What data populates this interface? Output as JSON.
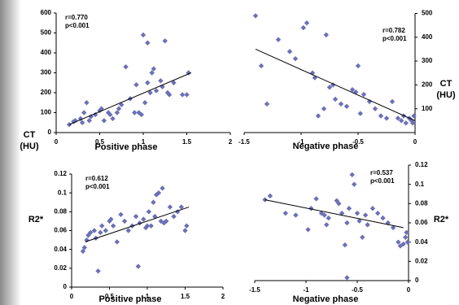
{
  "chart_data": [
    {
      "type": "scatter",
      "annotations": [
        "r=0.770",
        "p<0.001"
      ],
      "xlabel": "Positive phase",
      "ylabel_lines": [
        "CT",
        "(HU)"
      ],
      "y_axis_side": "left",
      "color": "#6b70b6",
      "xlim": [
        0,
        2
      ],
      "xticks": [
        0,
        0.5,
        1,
        1.5,
        2
      ],
      "ylim": [
        0,
        600
      ],
      "yticks": [
        0,
        100,
        200,
        300,
        400,
        500,
        600
      ],
      "x": [
        0.15,
        0.2,
        0.22,
        0.28,
        0.3,
        0.32,
        0.35,
        0.38,
        0.4,
        0.45,
        0.5,
        0.52,
        0.55,
        0.6,
        0.62,
        0.65,
        0.7,
        0.72,
        0.75,
        0.8,
        0.85,
        0.9,
        0.92,
        0.95,
        0.98,
        1.0,
        1.02,
        1.05,
        1.05,
        1.08,
        1.1,
        1.12,
        1.15,
        1.2,
        1.22,
        1.25,
        1.28,
        1.3,
        1.35,
        1.45,
        1.5,
        1.52
      ],
      "values": [
        40,
        55,
        60,
        70,
        50,
        100,
        150,
        60,
        80,
        90,
        110,
        120,
        60,
        100,
        90,
        70,
        100,
        120,
        140,
        330,
        170,
        100,
        240,
        100,
        90,
        490,
        150,
        250,
        450,
        200,
        300,
        320,
        210,
        260,
        230,
        460,
        200,
        190,
        250,
        190,
        190,
        300
      ],
      "trendline": {
        "x": [
          0.15,
          1.55
        ],
        "y": [
          40,
          300
        ]
      }
    },
    {
      "type": "scatter",
      "annotations": [
        "r=0.782",
        "p<0.001"
      ],
      "xlabel": "Negative phase",
      "ylabel_lines": [
        "CT",
        "(HU)"
      ],
      "y_axis_side": "right",
      "color": "#6b70b6",
      "xlim": [
        -1.5,
        0
      ],
      "xticks": [
        -1.5,
        -1,
        -0.5,
        0
      ],
      "ylim": [
        0,
        500
      ],
      "yticks": [
        100,
        200,
        300,
        400,
        500
      ],
      "x": [
        -1.4,
        -1.35,
        -1.3,
        -1.2,
        -1.1,
        -1.05,
        -0.98,
        -0.95,
        -0.9,
        -0.88,
        -0.85,
        -0.8,
        -0.78,
        -0.75,
        -0.72,
        -0.7,
        -0.65,
        -0.6,
        -0.55,
        -0.52,
        -0.5,
        -0.48,
        -0.45,
        -0.4,
        -0.35,
        -0.3,
        -0.25,
        -0.2,
        -0.15,
        -0.12,
        -0.1,
        -0.08,
        -0.05,
        -0.03,
        -0.01,
        -0.02
      ],
      "values": [
        490,
        280,
        120,
        390,
        340,
        310,
        440,
        460,
        250,
        230,
        70,
        100,
        410,
        190,
        200,
        140,
        120,
        110,
        180,
        170,
        280,
        80,
        160,
        130,
        100,
        70,
        60,
        130,
        60,
        50,
        70,
        40,
        60,
        50,
        70,
        40
      ],
      "trendline": {
        "x": [
          -1.4,
          0
        ],
        "y": [
          350,
          50
        ]
      }
    },
    {
      "type": "scatter",
      "annotations": [
        "r=0.612",
        "p<0.001"
      ],
      "xlabel": "Positive phase",
      "ylabel": "R2*",
      "y_axis_side": "left",
      "color": "#6b70b6",
      "xlim": [
        0,
        2
      ],
      "xticks": [
        0,
        0.5,
        1,
        1.5,
        2
      ],
      "ylim": [
        0,
        0.12
      ],
      "yticks": [
        0,
        0.02,
        0.04,
        0.06,
        0.08,
        0.1,
        0.12
      ],
      "x": [
        0.15,
        0.17,
        0.2,
        0.22,
        0.25,
        0.3,
        0.32,
        0.35,
        0.38,
        0.4,
        0.45,
        0.5,
        0.52,
        0.55,
        0.6,
        0.65,
        0.7,
        0.75,
        0.8,
        0.85,
        0.88,
        0.9,
        0.95,
        0.98,
        1.0,
        1.02,
        1.05,
        1.08,
        1.1,
        1.12,
        1.15,
        1.18,
        1.2,
        1.22,
        1.25,
        1.3,
        1.35,
        1.4,
        1.45,
        1.5,
        1.52
      ],
      "values": [
        0.038,
        0.042,
        0.05,
        0.055,
        0.058,
        0.06,
        0.052,
        0.017,
        0.058,
        0.065,
        0.06,
        0.07,
        0.072,
        0.065,
        0.048,
        0.077,
        0.07,
        0.06,
        0.065,
        0.075,
        0.022,
        0.068,
        0.072,
        0.063,
        0.065,
        0.08,
        0.065,
        0.09,
        0.075,
        0.098,
        0.1,
        0.07,
        0.105,
        0.068,
        0.07,
        0.085,
        0.075,
        0.08,
        0.085,
        0.06,
        0.065
      ],
      "trendline": {
        "x": [
          0.18,
          1.55
        ],
        "y": [
          0.048,
          0.085
        ]
      }
    },
    {
      "type": "scatter",
      "annotations": [
        "r=0.537",
        "p<0.001"
      ],
      "xlabel": "Negative phase",
      "ylabel": "R2*",
      "y_axis_side": "right",
      "color": "#6b70b6",
      "xlim": [
        -1.5,
        0
      ],
      "xticks": [
        -1.5,
        -1,
        -0.5,
        0
      ],
      "ylim": [
        0,
        0.12
      ],
      "yticks": [
        0,
        0.02,
        0.04,
        0.06,
        0.08,
        0.1,
        0.12
      ],
      "x": [
        -1.4,
        -1.35,
        -1.2,
        -1.1,
        -0.98,
        -0.95,
        -0.9,
        -0.85,
        -0.82,
        -0.8,
        -0.78,
        -0.7,
        -0.68,
        -0.65,
        -0.62,
        -0.6,
        -0.58,
        -0.55,
        -0.53,
        -0.5,
        -0.48,
        -0.45,
        -0.42,
        -0.4,
        -0.35,
        -0.3,
        -0.25,
        -0.2,
        -0.15,
        -0.1,
        -0.08,
        -0.05,
        -0.03,
        -0.02,
        -0.01,
        -0.6
      ],
      "values": [
        0.084,
        0.088,
        0.07,
        0.068,
        0.053,
        0.075,
        0.085,
        0.07,
        0.068,
        0.058,
        0.065,
        0.083,
        0.08,
        0.07,
        0.037,
        0.06,
        0.075,
        0.11,
        0.1,
        0.07,
        0.062,
        0.045,
        0.068,
        0.058,
        0.075,
        0.07,
        0.065,
        0.06,
        0.055,
        0.04,
        0.036,
        0.038,
        0.045,
        0.05,
        0.04,
        0.003
      ],
      "trendline": {
        "x": [
          -1.4,
          -0.05
        ],
        "y": [
          0.084,
          0.055
        ]
      }
    }
  ]
}
